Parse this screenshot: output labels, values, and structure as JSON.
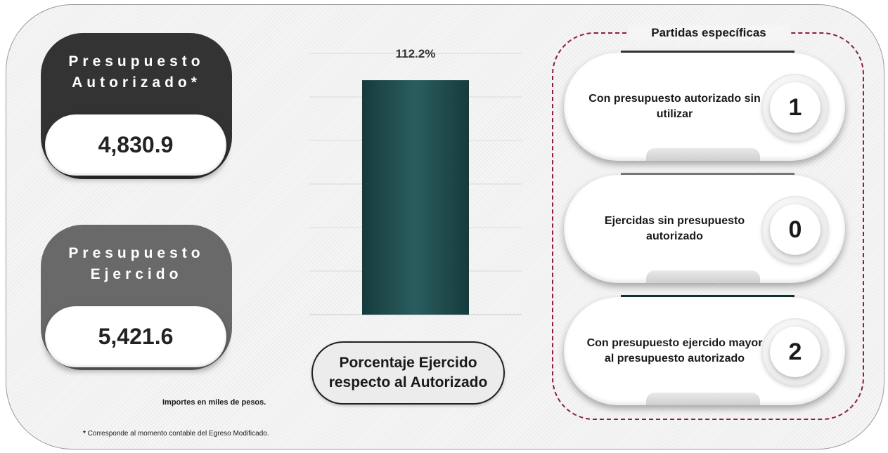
{
  "autorizado": {
    "label": "Presupuesto Autorizado*",
    "value": "4,830.9",
    "color": "#333333"
  },
  "ejercido": {
    "label": "Presupuesto Ejercido",
    "value": "5,421.6",
    "color": "#696969"
  },
  "chart_data": {
    "type": "bar",
    "values": [
      112.2
    ],
    "data_labels": [
      "112.2%"
    ],
    "title": "",
    "xlabel": "Porcentaje Ejercido respecto al Autorizado",
    "ylabel": "",
    "ylim": [
      0,
      125
    ],
    "grid": true,
    "bar_color": "#1f4d4f"
  },
  "partidas": {
    "title": "Partidas específicas",
    "border_color": "#8e1e3c",
    "items": [
      {
        "label": "Con presupuesto autorizado sin utilizar",
        "count": "1",
        "tab_color": "#333333"
      },
      {
        "label": "Ejercidas sin presupuesto autorizado",
        "count": "0",
        "tab_color": "#7a7a7a"
      },
      {
        "label": "Con presupuesto ejercido mayor al presupuesto autorizado",
        "count": "2",
        "tab_color": "#123232"
      }
    ]
  },
  "notes": {
    "units": "Importes en miles de pesos.",
    "footnote_mark": "*",
    "footnote": " Corresponde al momento contable del Egreso Modificado."
  }
}
